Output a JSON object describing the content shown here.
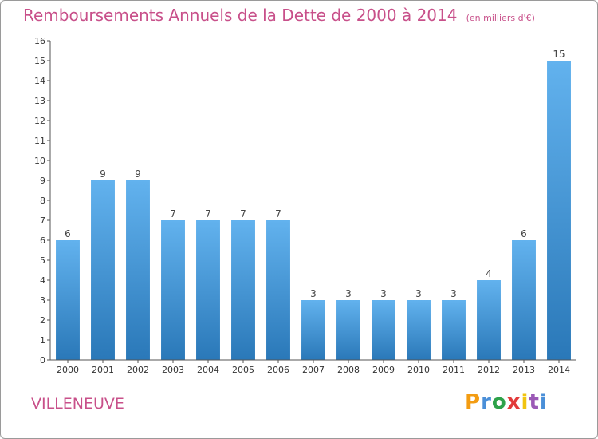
{
  "header": {
    "title": "Remboursements Annuels de la Dette de 2000 à 2014",
    "unit": "(en milliers d'€)"
  },
  "footer": {
    "commune": "VILLENEUVE",
    "logo_letters": [
      "P",
      "r",
      "o",
      "x",
      "i",
      "t",
      "i"
    ],
    "logo_colors": [
      "#f39c12",
      "#4a8fd8",
      "#2ea24a",
      "#e23a3a",
      "#f1c40f",
      "#9b59b6",
      "#4a8fd8"
    ]
  },
  "colors": {
    "title": "#c8508a",
    "bar_light": "#62b2ee",
    "bar_dark": "#2a78b8",
    "axis": "#555555"
  },
  "chart_data": {
    "type": "bar",
    "categories": [
      "2000",
      "2001",
      "2002",
      "2003",
      "2004",
      "2005",
      "2006",
      "2007",
      "2008",
      "2009",
      "2010",
      "2011",
      "2012",
      "2013",
      "2014"
    ],
    "values": [
      6,
      9,
      9,
      7,
      7,
      7,
      7,
      3,
      3,
      3,
      3,
      3,
      4,
      6,
      15
    ],
    "data_labels": [
      "6",
      "9",
      "9",
      "7",
      "7",
      "7",
      "7",
      "3",
      "3",
      "3",
      "3",
      "3",
      "4",
      "6",
      "15"
    ],
    "yticks": [
      "0",
      "1",
      "2",
      "3",
      "4",
      "5",
      "6",
      "7",
      "8",
      "9",
      "10",
      "11",
      "12",
      "13",
      "14",
      "15",
      "16"
    ],
    "ylim": [
      0,
      16
    ],
    "grid": false
  }
}
